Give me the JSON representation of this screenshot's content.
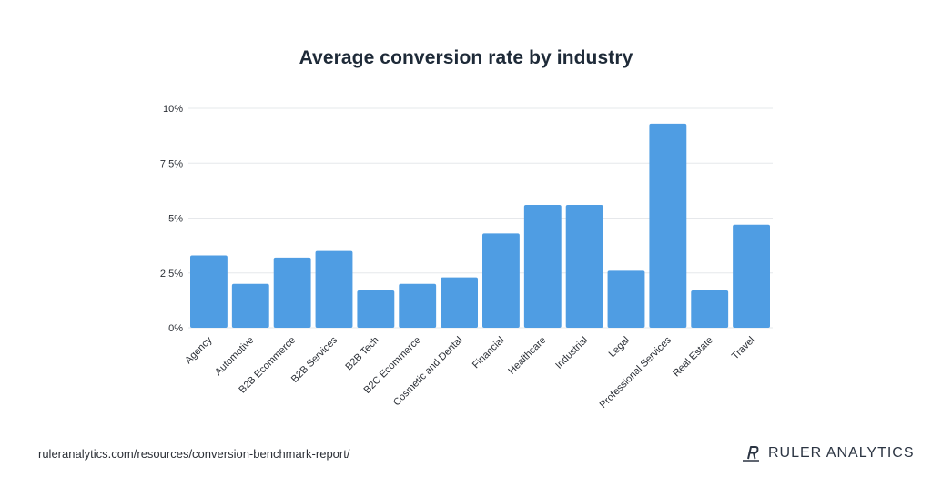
{
  "chart_data": {
    "type": "bar",
    "title": "Average conversion rate by industry",
    "xlabel": "",
    "ylabel": "",
    "ylim": [
      0,
      10
    ],
    "yticks": [
      {
        "value": 0,
        "label": "0%"
      },
      {
        "value": 2.5,
        "label": "2.5%"
      },
      {
        "value": 5,
        "label": "5%"
      },
      {
        "value": 7.5,
        "label": "7.5%"
      },
      {
        "value": 10,
        "label": "10%"
      }
    ],
    "categories": [
      "Agency",
      "Automotive",
      "B2B Ecommerce",
      "B2B Services",
      "B2B Tech",
      "B2C Ecommerce",
      "Cosmetic and Dental",
      "Financial",
      "Healthcare",
      "Industrial",
      "Legal",
      "Professional Services",
      "Real Estate",
      "Travel"
    ],
    "values": [
      3.3,
      2.0,
      3.2,
      3.5,
      1.7,
      2.0,
      2.3,
      4.3,
      5.6,
      5.6,
      2.6,
      9.3,
      1.7,
      4.7
    ],
    "grid": true,
    "bar_color": "#4f9de3"
  },
  "footer": {
    "source": "ruleranalytics.com/resources/conversion-benchmark-report/",
    "brand_name": "RULER ANALYTICS",
    "logo_icon": "ruler-r-logo-icon"
  }
}
